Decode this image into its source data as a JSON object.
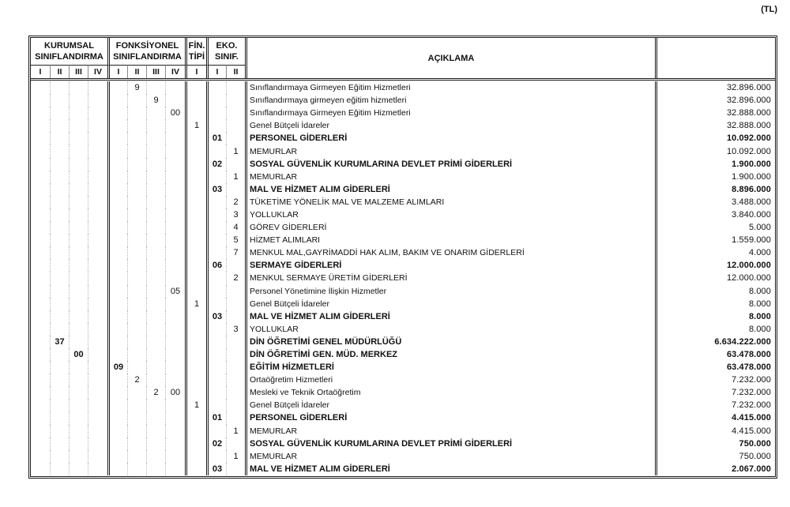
{
  "unit_label": "(TL)",
  "header": {
    "kurumsal_line1": "KURUMSAL",
    "kurumsal_line2": "SINIFLANDIRMA",
    "fonksiyonel_line1": "FONKSİYONEL",
    "fonksiyonel_line2": "SINIFLANDIRMA",
    "fin_line1": "FİN.",
    "fin_line2": "TİPİ",
    "eko_line1": "EKO.",
    "eko_line2": "SINIF.",
    "aciklama_title": "AÇIKLAMA",
    "kurumsal_levels": [
      "I",
      "II",
      "III",
      "IV"
    ],
    "fonksiyonel_levels": [
      "I",
      "II",
      "III",
      "IV"
    ],
    "fin_levels": [
      "I"
    ],
    "eko_levels": [
      "I",
      "II"
    ]
  },
  "rows": [
    {
      "k1": "",
      "k2": "",
      "k3": "",
      "k4": "",
      "f1": "",
      "f2": "9",
      "f3": "",
      "f4": "",
      "fin": "",
      "e1": "",
      "e2": "",
      "desc": "Sınıflandırmaya Girmeyen Eğitim Hizmetleri",
      "amount": "32.896.000",
      "bold": false
    },
    {
      "k1": "",
      "k2": "",
      "k3": "",
      "k4": "",
      "f1": "",
      "f2": "",
      "f3": "9",
      "f4": "",
      "fin": "",
      "e1": "",
      "e2": "",
      "desc": "Sınıflandırmaya girmeyen eğitim hizmetleri",
      "amount": "32.896.000",
      "bold": false
    },
    {
      "k1": "",
      "k2": "",
      "k3": "",
      "k4": "",
      "f1": "",
      "f2": "",
      "f3": "",
      "f4": "00",
      "fin": "",
      "e1": "",
      "e2": "",
      "desc": "Sınıflandırmaya Girmeyen Eğitim Hizmetleri",
      "amount": "32.888.000",
      "bold": false
    },
    {
      "k1": "",
      "k2": "",
      "k3": "",
      "k4": "",
      "f1": "",
      "f2": "",
      "f3": "",
      "f4": "",
      "fin": "1",
      "e1": "",
      "e2": "",
      "desc": "Genel Bütçeli İdareler",
      "amount": "32.888.000",
      "bold": false
    },
    {
      "k1": "",
      "k2": "",
      "k3": "",
      "k4": "",
      "f1": "",
      "f2": "",
      "f3": "",
      "f4": "",
      "fin": "",
      "e1": "01",
      "e2": "",
      "desc": "PERSONEL GİDERLERİ",
      "amount": "10.092.000",
      "bold": true
    },
    {
      "k1": "",
      "k2": "",
      "k3": "",
      "k4": "",
      "f1": "",
      "f2": "",
      "f3": "",
      "f4": "",
      "fin": "",
      "e1": "",
      "e2": "1",
      "desc": "MEMURLAR",
      "amount": "10.092.000",
      "bold": false
    },
    {
      "k1": "",
      "k2": "",
      "k3": "",
      "k4": "",
      "f1": "",
      "f2": "",
      "f3": "",
      "f4": "",
      "fin": "",
      "e1": "02",
      "e2": "",
      "desc": "SOSYAL GÜVENLİK KURUMLARINA DEVLET PRİMİ GİDERLERİ",
      "amount": "1.900.000",
      "bold": true
    },
    {
      "k1": "",
      "k2": "",
      "k3": "",
      "k4": "",
      "f1": "",
      "f2": "",
      "f3": "",
      "f4": "",
      "fin": "",
      "e1": "",
      "e2": "1",
      "desc": "MEMURLAR",
      "amount": "1.900.000",
      "bold": false
    },
    {
      "k1": "",
      "k2": "",
      "k3": "",
      "k4": "",
      "f1": "",
      "f2": "",
      "f3": "",
      "f4": "",
      "fin": "",
      "e1": "03",
      "e2": "",
      "desc": "MAL VE HİZMET ALIM GİDERLERİ",
      "amount": "8.896.000",
      "bold": true
    },
    {
      "k1": "",
      "k2": "",
      "k3": "",
      "k4": "",
      "f1": "",
      "f2": "",
      "f3": "",
      "f4": "",
      "fin": "",
      "e1": "",
      "e2": "2",
      "desc": "TÜKETİME YÖNELİK MAL VE MALZEME ALIMLARI",
      "amount": "3.488.000",
      "bold": false
    },
    {
      "k1": "",
      "k2": "",
      "k3": "",
      "k4": "",
      "f1": "",
      "f2": "",
      "f3": "",
      "f4": "",
      "fin": "",
      "e1": "",
      "e2": "3",
      "desc": "YOLLUKLAR",
      "amount": "3.840.000",
      "bold": false
    },
    {
      "k1": "",
      "k2": "",
      "k3": "",
      "k4": "",
      "f1": "",
      "f2": "",
      "f3": "",
      "f4": "",
      "fin": "",
      "e1": "",
      "e2": "4",
      "desc": "GÖREV GİDERLERİ",
      "amount": "5.000",
      "bold": false
    },
    {
      "k1": "",
      "k2": "",
      "k3": "",
      "k4": "",
      "f1": "",
      "f2": "",
      "f3": "",
      "f4": "",
      "fin": "",
      "e1": "",
      "e2": "5",
      "desc": "HİZMET ALIMLARI",
      "amount": "1.559.000",
      "bold": false
    },
    {
      "k1": "",
      "k2": "",
      "k3": "",
      "k4": "",
      "f1": "",
      "f2": "",
      "f3": "",
      "f4": "",
      "fin": "",
      "e1": "",
      "e2": "7",
      "desc": "MENKUL MAL,GAYRİMADDİ HAK ALIM, BAKIM VE ONARIM GİDERLERİ",
      "amount": "4.000",
      "bold": false
    },
    {
      "k1": "",
      "k2": "",
      "k3": "",
      "k4": "",
      "f1": "",
      "f2": "",
      "f3": "",
      "f4": "",
      "fin": "",
      "e1": "06",
      "e2": "",
      "desc": "SERMAYE GİDERLERİ",
      "amount": "12.000.000",
      "bold": true
    },
    {
      "k1": "",
      "k2": "",
      "k3": "",
      "k4": "",
      "f1": "",
      "f2": "",
      "f3": "",
      "f4": "",
      "fin": "",
      "e1": "",
      "e2": "2",
      "desc": "MENKUL SERMAYE ÜRETİM GİDERLERİ",
      "amount": "12.000.000",
      "bold": false
    },
    {
      "k1": "",
      "k2": "",
      "k3": "",
      "k4": "",
      "f1": "",
      "f2": "",
      "f3": "",
      "f4": "05",
      "fin": "",
      "e1": "",
      "e2": "",
      "desc": "Personel Yönetimine İlişkin Hizmetler",
      "amount": "8.000",
      "bold": false
    },
    {
      "k1": "",
      "k2": "",
      "k3": "",
      "k4": "",
      "f1": "",
      "f2": "",
      "f3": "",
      "f4": "",
      "fin": "1",
      "e1": "",
      "e2": "",
      "desc": "Genel Bütçeli İdareler",
      "amount": "8.000",
      "bold": false
    },
    {
      "k1": "",
      "k2": "",
      "k3": "",
      "k4": "",
      "f1": "",
      "f2": "",
      "f3": "",
      "f4": "",
      "fin": "",
      "e1": "03",
      "e2": "",
      "desc": "MAL VE HİZMET ALIM GİDERLERİ",
      "amount": "8.000",
      "bold": true
    },
    {
      "k1": "",
      "k2": "",
      "k3": "",
      "k4": "",
      "f1": "",
      "f2": "",
      "f3": "",
      "f4": "",
      "fin": "",
      "e1": "",
      "e2": "3",
      "desc": "YOLLUKLAR",
      "amount": "8.000",
      "bold": false
    },
    {
      "k1": "",
      "k2": "37",
      "k3": "",
      "k4": "",
      "f1": "",
      "f2": "",
      "f3": "",
      "f4": "",
      "fin": "",
      "e1": "",
      "e2": "",
      "desc": "DİN ÖĞRETİMİ GENEL MÜDÜRLÜĞÜ",
      "amount": "6.634.222.000",
      "bold": true
    },
    {
      "k1": "",
      "k2": "",
      "k3": "00",
      "k4": "",
      "f1": "",
      "f2": "",
      "f3": "",
      "f4": "",
      "fin": "",
      "e1": "",
      "e2": "",
      "desc": "DİN ÖĞRETİMİ GEN. MÜD. MERKEZ",
      "amount": "63.478.000",
      "bold": true
    },
    {
      "k1": "",
      "k2": "",
      "k3": "",
      "k4": "",
      "f1": "09",
      "f2": "",
      "f3": "",
      "f4": "",
      "fin": "",
      "e1": "",
      "e2": "",
      "desc": "EĞİTİM HİZMETLERİ",
      "amount": "63.478.000",
      "bold": true
    },
    {
      "k1": "",
      "k2": "",
      "k3": "",
      "k4": "",
      "f1": "",
      "f2": "2",
      "f3": "",
      "f4": "",
      "fin": "",
      "e1": "",
      "e2": "",
      "desc": "Ortaöğretim Hizmetleri",
      "amount": "7.232.000",
      "bold": false
    },
    {
      "k1": "",
      "k2": "",
      "k3": "",
      "k4": "",
      "f1": "",
      "f2": "",
      "f3": "2",
      "f4": "00",
      "fin": "",
      "e1": "",
      "e2": "",
      "desc": "Mesleki ve Teknik Ortaöğretim",
      "amount": "7.232.000",
      "bold": false
    },
    {
      "k1": "",
      "k2": "",
      "k3": "",
      "k4": "",
      "f1": "",
      "f2": "",
      "f3": "",
      "f4": "",
      "fin": "1",
      "e1": "",
      "e2": "",
      "desc": "Genel Bütçeli İdareler",
      "amount": "7.232.000",
      "bold": false
    },
    {
      "k1": "",
      "k2": "",
      "k3": "",
      "k4": "",
      "f1": "",
      "f2": "",
      "f3": "",
      "f4": "",
      "fin": "",
      "e1": "01",
      "e2": "",
      "desc": "PERSONEL GİDERLERİ",
      "amount": "4.415.000",
      "bold": true
    },
    {
      "k1": "",
      "k2": "",
      "k3": "",
      "k4": "",
      "f1": "",
      "f2": "",
      "f3": "",
      "f4": "",
      "fin": "",
      "e1": "",
      "e2": "1",
      "desc": "MEMURLAR",
      "amount": "4.415.000",
      "bold": false
    },
    {
      "k1": "",
      "k2": "",
      "k3": "",
      "k4": "",
      "f1": "",
      "f2": "",
      "f3": "",
      "f4": "",
      "fin": "",
      "e1": "02",
      "e2": "",
      "desc": "SOSYAL GÜVENLİK KURUMLARINA DEVLET PRİMİ GİDERLERİ",
      "amount": "750.000",
      "bold": true
    },
    {
      "k1": "",
      "k2": "",
      "k3": "",
      "k4": "",
      "f1": "",
      "f2": "",
      "f3": "",
      "f4": "",
      "fin": "",
      "e1": "",
      "e2": "1",
      "desc": "MEMURLAR",
      "amount": "750.000",
      "bold": false
    },
    {
      "k1": "",
      "k2": "",
      "k3": "",
      "k4": "",
      "f1": "",
      "f2": "",
      "f3": "",
      "f4": "",
      "fin": "",
      "e1": "03",
      "e2": "",
      "desc": "MAL VE HİZMET ALIM GİDERLERİ",
      "amount": "2.067.000",
      "bold": true
    }
  ]
}
